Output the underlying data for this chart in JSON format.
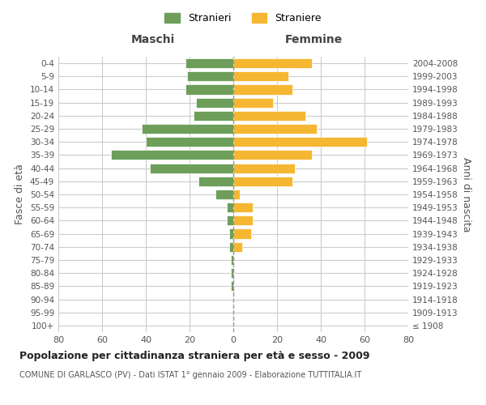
{
  "age_groups": [
    "100+",
    "95-99",
    "90-94",
    "85-89",
    "80-84",
    "75-79",
    "70-74",
    "65-69",
    "60-64",
    "55-59",
    "50-54",
    "45-49",
    "40-44",
    "35-39",
    "30-34",
    "25-29",
    "20-24",
    "15-19",
    "10-14",
    "5-9",
    "0-4"
  ],
  "birth_years": [
    "≤ 1908",
    "1909-1913",
    "1914-1918",
    "1919-1923",
    "1924-1928",
    "1929-1933",
    "1934-1938",
    "1939-1943",
    "1944-1948",
    "1949-1953",
    "1954-1958",
    "1959-1963",
    "1964-1968",
    "1969-1973",
    "1974-1978",
    "1979-1983",
    "1984-1988",
    "1989-1993",
    "1994-1998",
    "1999-2003",
    "2004-2008"
  ],
  "maschi": [
    0,
    0,
    0,
    1,
    1,
    1,
    2,
    2,
    3,
    3,
    8,
    16,
    38,
    56,
    40,
    42,
    18,
    17,
    22,
    21,
    22
  ],
  "femmine": [
    0,
    0,
    0,
    0,
    0,
    0,
    4,
    8,
    9,
    9,
    3,
    27,
    28,
    36,
    61,
    38,
    33,
    18,
    27,
    25,
    36
  ],
  "maschi_color": "#6d9e5a",
  "femmine_color": "#f5b731",
  "background_color": "#ffffff",
  "grid_color": "#cccccc",
  "bar_edge_color": "#ffffff",
  "title": "Popolazione per cittadinanza straniera per età e sesso - 2009",
  "subtitle": "COMUNE DI GARLASCO (PV) - Dati ISTAT 1° gennaio 2009 - Elaborazione TUTTITALIA.IT",
  "ylabel_left": "Fasce di età",
  "ylabel_right": "Anni di nascita",
  "header_maschi": "Maschi",
  "header_femmine": "Femmine",
  "legend_maschi": "Stranieri",
  "legend_femmine": "Straniere",
  "xlim": 80
}
